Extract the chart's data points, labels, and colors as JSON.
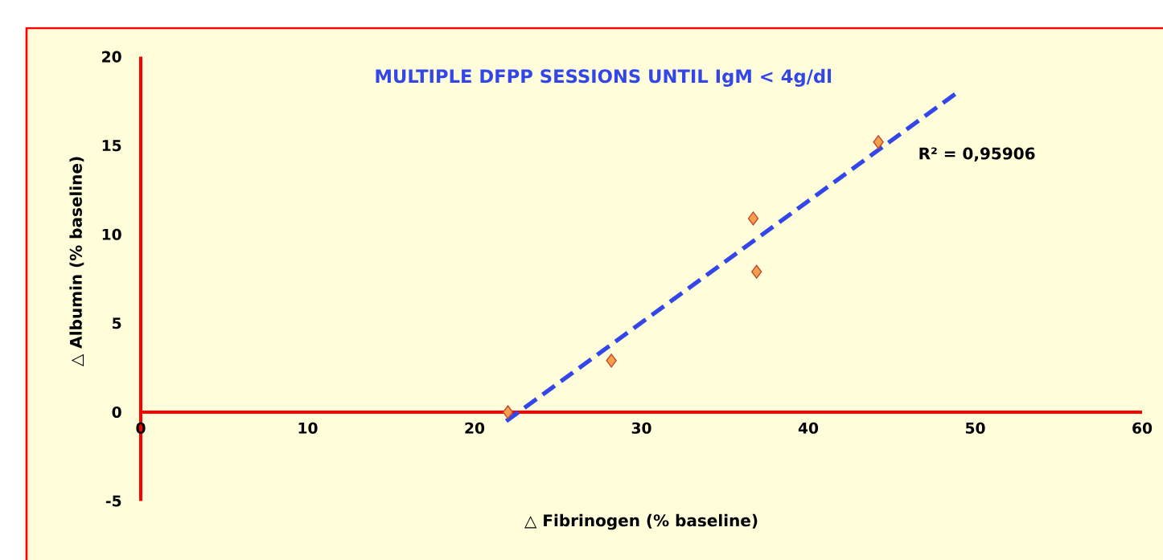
{
  "chart_data": {
    "type": "scatter",
    "title": "MULTIPLE DFPP  SESSIONS UNTIL IgM < 4g/dl",
    "xlabel": "△ Fibrinogen (% baseline)",
    "ylabel": "△ Albumin (% baseline)",
    "xlim": [
      0,
      60
    ],
    "ylim": [
      -5,
      20
    ],
    "xticks": [
      0,
      10,
      20,
      30,
      40,
      50,
      60
    ],
    "yticks": [
      -5,
      0,
      5,
      10,
      15,
      20
    ],
    "series": [
      {
        "color": "#f4a04a",
        "marker": "diamond",
        "x": [
          22.0,
          28.2,
          36.7,
          36.9,
          44.2
        ],
        "values": [
          0,
          2.9,
          10.9,
          7.9,
          15.2
        ]
      },
      {
        "type": "line",
        "color": "#3347e8",
        "line_style": "dashed",
        "x": [
          21.9,
          48.8
        ],
        "values": [
          -0.5,
          17.9
        ]
      }
    ],
    "annotations": [
      "R² = 0,95906"
    ]
  }
}
